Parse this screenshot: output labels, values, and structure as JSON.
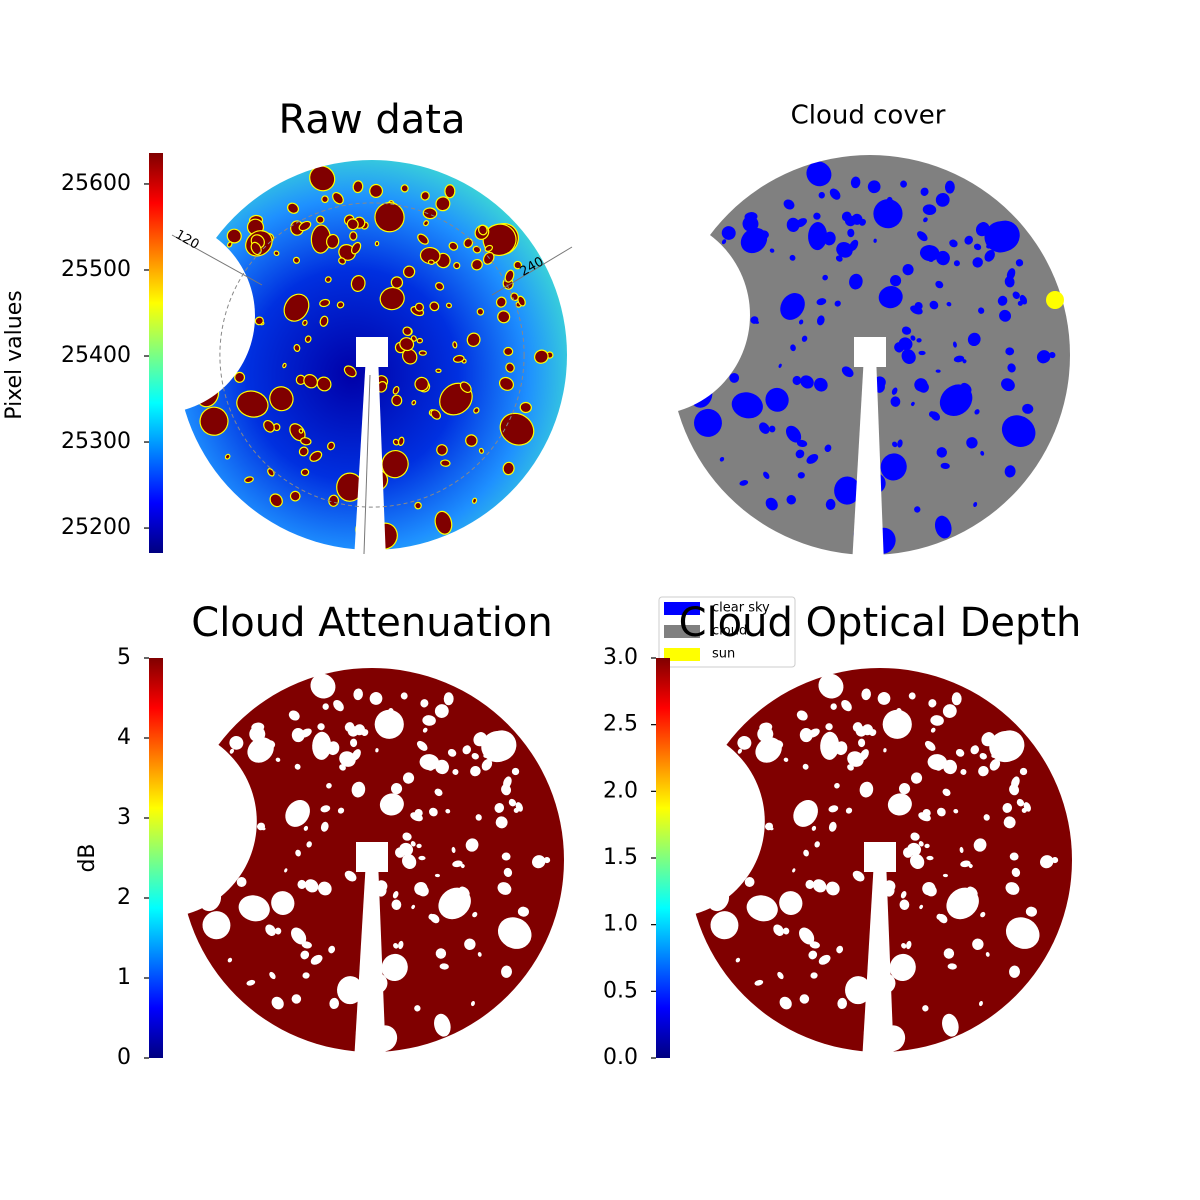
{
  "chart_data": [
    {
      "type": "image",
      "title": "Raw data",
      "colorbar_label": "Pixel values",
      "colormap": "jet",
      "ylim": [
        25171,
        25636
      ],
      "yticks": [
        25200,
        25300,
        25400,
        25500,
        25600
      ],
      "annotations": [
        "120",
        "240"
      ]
    },
    {
      "type": "image",
      "title": "Cloud cover",
      "legend": [
        {
          "name": "clear sky",
          "color": "#0000ff"
        },
        {
          "name": "cloud",
          "color": "#808080"
        },
        {
          "name": "sun",
          "color": "#ffff00"
        }
      ]
    },
    {
      "type": "image",
      "title": "Cloud Attenuation",
      "colorbar_label": "dB",
      "colormap": "jet",
      "ylim": [
        0,
        5
      ],
      "yticks": [
        0,
        1,
        2,
        3,
        4,
        5
      ]
    },
    {
      "type": "image",
      "title": "Cloud Optical Depth",
      "colormap": "jet",
      "ylim": [
        0,
        3
      ],
      "yticks": [
        {
          "value": 0,
          "label": "0.0"
        },
        0.5,
        {
          "value": 1,
          "label": "1.0"
        },
        1.5,
        {
          "value": 2,
          "label": "2.0"
        },
        2.5,
        {
          "value": 3,
          "label": "3.0"
        }
      ]
    }
  ]
}
